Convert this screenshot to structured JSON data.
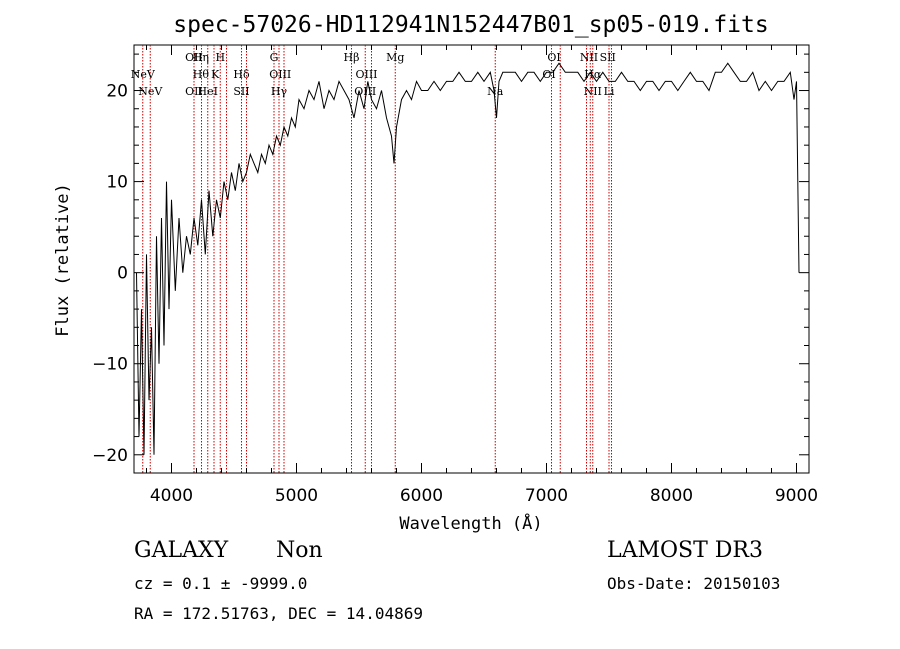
{
  "chart_data": {
    "type": "line",
    "title": "spec-57026-HD112941N152447B01_sp05-019.fits",
    "xlabel": "Wavelength (Å)",
    "ylabel": "Flux (relative)",
    "xlim": [
      3700,
      9100
    ],
    "ylim": [
      -22,
      25
    ],
    "xticks": [
      4000,
      5000,
      6000,
      7000,
      8000,
      9000
    ],
    "xtick_labels": [
      "4000",
      "5000",
      "6000",
      "7000",
      "8000",
      "9000"
    ],
    "yticks": [
      -20,
      -10,
      0,
      10,
      20
    ],
    "ytick_labels": [
      "−20",
      "−10",
      "0",
      "10",
      "20"
    ],
    "series": [
      {
        "name": "spectrum",
        "x": [
          3720,
          3740,
          3760,
          3780,
          3800,
          3820,
          3840,
          3860,
          3880,
          3900,
          3920,
          3940,
          3960,
          3980,
          4000,
          4030,
          4060,
          4090,
          4120,
          4150,
          4180,
          4210,
          4240,
          4270,
          4300,
          4330,
          4360,
          4390,
          4420,
          4450,
          4480,
          4510,
          4540,
          4570,
          4600,
          4630,
          4660,
          4690,
          4720,
          4750,
          4780,
          4810,
          4840,
          4870,
          4900,
          4930,
          4960,
          4990,
          5020,
          5060,
          5100,
          5140,
          5180,
          5220,
          5260,
          5300,
          5340,
          5380,
          5420,
          5460,
          5500,
          5540,
          5570,
          5600,
          5640,
          5680,
          5720,
          5760,
          5780,
          5800,
          5840,
          5880,
          5920,
          5960,
          6000,
          6050,
          6100,
          6150,
          6200,
          6250,
          6300,
          6350,
          6400,
          6450,
          6500,
          6550,
          6580,
          6600,
          6620,
          6650,
          6700,
          6750,
          6800,
          6850,
          6900,
          6950,
          7000,
          7050,
          7100,
          7150,
          7200,
          7250,
          7300,
          7350,
          7400,
          7450,
          7500,
          7550,
          7600,
          7650,
          7700,
          7750,
          7800,
          7850,
          7900,
          7950,
          8000,
          8050,
          8100,
          8150,
          8200,
          8250,
          8300,
          8350,
          8400,
          8450,
          8500,
          8550,
          8600,
          8650,
          8700,
          8750,
          8800,
          8850,
          8900,
          8950,
          8980,
          9000,
          9010,
          9020
        ],
        "y": [
          0,
          -18,
          -4,
          -20,
          2,
          -14,
          -6,
          -20,
          4,
          -10,
          6,
          -8,
          10,
          -4,
          8,
          -2,
          6,
          0,
          4,
          2,
          6,
          3,
          8,
          2,
          9,
          4,
          8,
          6,
          10,
          8,
          11,
          9,
          12,
          10,
          11,
          13,
          12,
          11,
          13,
          12,
          14,
          13,
          15,
          14,
          16,
          15,
          17,
          16,
          19,
          18,
          20,
          19,
          21,
          18,
          20,
          19,
          21,
          20,
          19,
          17,
          20,
          18,
          21,
          19,
          18,
          20,
          17,
          15,
          12,
          16,
          19,
          20,
          19,
          21,
          20,
          20,
          21,
          20,
          21,
          21,
          22,
          21,
          21,
          22,
          21,
          22,
          20,
          17,
          21,
          22,
          22,
          22,
          21,
          22,
          22,
          21,
          22,
          22,
          23,
          22,
          22,
          22,
          21,
          22,
          21,
          22,
          21,
          21,
          22,
          21,
          21,
          20,
          21,
          21,
          20,
          21,
          21,
          20,
          21,
          22,
          21,
          21,
          20,
          22,
          22,
          23,
          22,
          21,
          21,
          22,
          20,
          21,
          20,
          21,
          21,
          22,
          19,
          21,
          10,
          0
        ]
      }
    ],
    "line_markers": [
      {
        "label": "NeV",
        "x": 3770,
        "row": 2
      },
      {
        "label": "NeV",
        "x": 3830,
        "row": 3
      },
      {
        "label": "OII",
        "x": 4180,
        "row": 1
      },
      {
        "label": "OII",
        "x": 4180,
        "row": 3
      },
      {
        "label": "Hη",
        "x": 4235,
        "row": 1
      },
      {
        "label": "Hθ",
        "x": 4235,
        "row": 2
      },
      {
        "label": "HeI",
        "x": 4290,
        "row": 3
      },
      {
        "label": "H",
        "x": 4390,
        "row": 1
      },
      {
        "label": "K",
        "x": 4350,
        "row": 2
      },
      {
        "label": "Hδ",
        "x": 4560,
        "row": 2
      },
      {
        "label": "SII",
        "x": 4560,
        "row": 3
      },
      {
        "label": "G",
        "x": 4820,
        "row": 1
      },
      {
        "label": "OIII",
        "x": 4870,
        "row": 2
      },
      {
        "label": "Hγ",
        "x": 4860,
        "row": 3
      },
      {
        "label": "Hβ",
        "x": 5440,
        "row": 1
      },
      {
        "label": "OIII",
        "x": 5560,
        "row": 2
      },
      {
        "label": "OIII",
        "x": 5550,
        "row": 3
      },
      {
        "label": "Mg",
        "x": 5790,
        "row": 1
      },
      {
        "label": "Na",
        "x": 6590,
        "row": 3
      },
      {
        "label": "OI",
        "x": 7060,
        "row": 1
      },
      {
        "label": "OI",
        "x": 7020,
        "row": 2
      },
      {
        "label": "NII",
        "x": 7340,
        "row": 1
      },
      {
        "label": "SII",
        "x": 7490,
        "row": 1
      },
      {
        "label": "Hα",
        "x": 7370,
        "row": 2
      },
      {
        "label": "NII",
        "x": 7370,
        "row": 3
      },
      {
        "label": "Li",
        "x": 7500,
        "row": 3
      }
    ],
    "line_positions": [
      3770,
      3830,
      4180,
      4240,
      4290,
      4340,
      4390,
      4440,
      4560,
      4600,
      4820,
      4860,
      4900,
      5440,
      5550,
      5600,
      5790,
      6590,
      7040,
      7110,
      7320,
      7350,
      7370,
      7500,
      7520
    ]
  },
  "info": {
    "class_label": "GALAXY",
    "subclass_label": "Non",
    "survey": "LAMOST DR3",
    "cz_text": "cz = 0.1 ± -9999.0",
    "obs_date": "Obs-Date: 20150103",
    "radec": "RA = 172.51763, DEC =  14.04869"
  }
}
